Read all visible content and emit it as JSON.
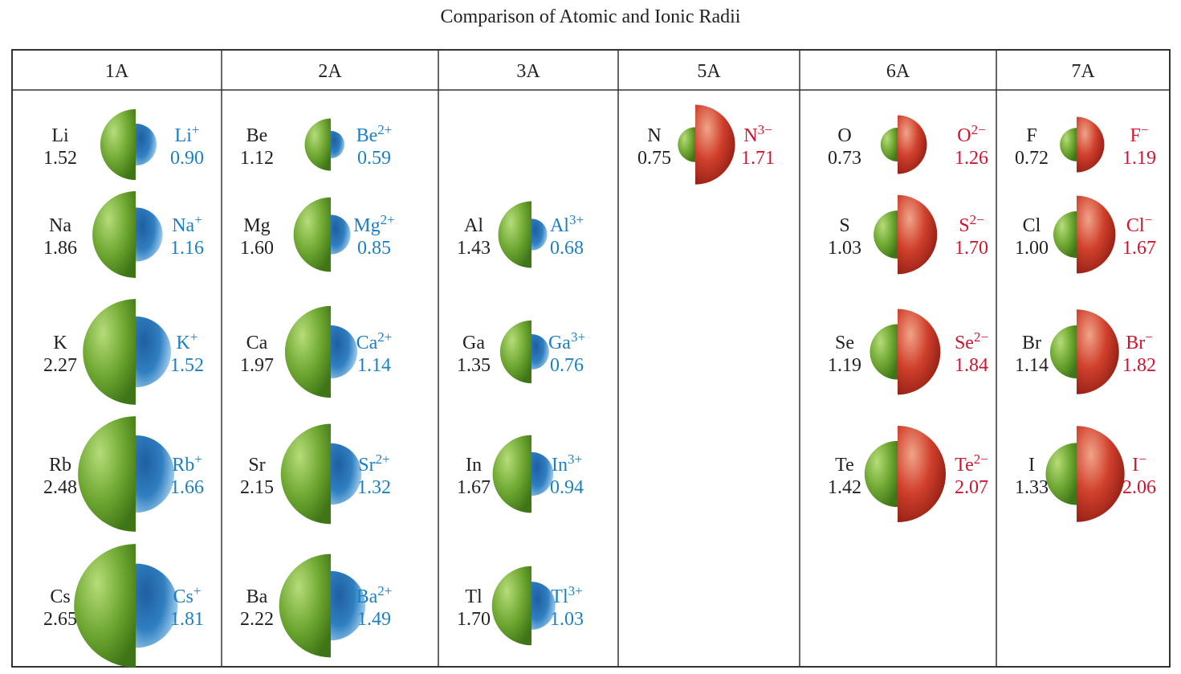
{
  "title": "Comparison of Atomic and Ionic Radii",
  "colors": {
    "atom": "#6fa832",
    "cation": "#2f7fc1",
    "anion": "#d0402c",
    "cation_text": "#1b7fc4",
    "anion_text": "#d0152f",
    "atom_text": "#222222",
    "border": "#333333"
  },
  "groups": [
    {
      "header": "1A",
      "ion_type": "cation",
      "items": [
        {
          "symbol": "Li",
          "atomic_radius": "1.52",
          "ion": "Li",
          "charge": "+",
          "ionic_radius": "0.90",
          "row": 0
        },
        {
          "symbol": "Na",
          "atomic_radius": "1.86",
          "ion": "Na",
          "charge": "+",
          "ionic_radius": "1.16",
          "row": 1
        },
        {
          "symbol": "K",
          "atomic_radius": "2.27",
          "ion": "K",
          "charge": "+",
          "ionic_radius": "1.52",
          "row": 2
        },
        {
          "symbol": "Rb",
          "atomic_radius": "2.48",
          "ion": "Rb",
          "charge": "+",
          "ionic_radius": "1.66",
          "row": 3
        },
        {
          "symbol": "Cs",
          "atomic_radius": "2.65",
          "ion": "Cs",
          "charge": "+",
          "ionic_radius": "1.81",
          "row": 4
        }
      ]
    },
    {
      "header": "2A",
      "ion_type": "cation",
      "items": [
        {
          "symbol": "Be",
          "atomic_radius": "1.12",
          "ion": "Be",
          "charge": "2+",
          "ionic_radius": "0.59",
          "row": 0
        },
        {
          "symbol": "Mg",
          "atomic_radius": "1.60",
          "ion": "Mg",
          "charge": "2+",
          "ionic_radius": "0.85",
          "row": 1
        },
        {
          "symbol": "Ca",
          "atomic_radius": "1.97",
          "ion": "Ca",
          "charge": "2+",
          "ionic_radius": "1.14",
          "row": 2
        },
        {
          "symbol": "Sr",
          "atomic_radius": "2.15",
          "ion": "Sr",
          "charge": "2+",
          "ionic_radius": "1.32",
          "row": 3
        },
        {
          "symbol": "Ba",
          "atomic_radius": "2.22",
          "ion": "Ba",
          "charge": "2+",
          "ionic_radius": "1.49",
          "row": 4
        }
      ]
    },
    {
      "header": "3A",
      "ion_type": "cation",
      "items": [
        {
          "symbol": "Al",
          "atomic_radius": "1.43",
          "ion": "Al",
          "charge": "3+",
          "ionic_radius": "0.68",
          "row": 1
        },
        {
          "symbol": "Ga",
          "atomic_radius": "1.35",
          "ion": "Ga",
          "charge": "3+",
          "ionic_radius": "0.76",
          "row": 2
        },
        {
          "symbol": "In",
          "atomic_radius": "1.67",
          "ion": "In",
          "charge": "3+",
          "ionic_radius": "0.94",
          "row": 3
        },
        {
          "symbol": "Tl",
          "atomic_radius": "1.70",
          "ion": "Tl",
          "charge": "3+",
          "ionic_radius": "1.03",
          "row": 4
        }
      ]
    },
    {
      "header": "5A",
      "ion_type": "anion",
      "items": [
        {
          "symbol": "N",
          "atomic_radius": "0.75",
          "ion": "N",
          "charge": "3−",
          "ionic_radius": "1.71",
          "row": 0
        }
      ]
    },
    {
      "header": "6A",
      "ion_type": "anion",
      "items": [
        {
          "symbol": "O",
          "atomic_radius": "0.73",
          "ion": "O",
          "charge": "2−",
          "ionic_radius": "1.26",
          "row": 0
        },
        {
          "symbol": "S",
          "atomic_radius": "1.03",
          "ion": "S",
          "charge": "2−",
          "ionic_radius": "1.70",
          "row": 1
        },
        {
          "symbol": "Se",
          "atomic_radius": "1.19",
          "ion": "Se",
          "charge": "2−",
          "ionic_radius": "1.84",
          "row": 2
        },
        {
          "symbol": "Te",
          "atomic_radius": "1.42",
          "ion": "Te",
          "charge": "2−",
          "ionic_radius": "2.07",
          "row": 3
        }
      ]
    },
    {
      "header": "7A",
      "ion_type": "anion",
      "items": [
        {
          "symbol": "F",
          "atomic_radius": "0.72",
          "ion": "F",
          "charge": "−",
          "ionic_radius": "1.19",
          "row": 0
        },
        {
          "symbol": "Cl",
          "atomic_radius": "1.00",
          "ion": "Cl",
          "charge": "−",
          "ionic_radius": "1.67",
          "row": 1
        },
        {
          "symbol": "Br",
          "atomic_radius": "1.14",
          "ion": "Br",
          "charge": "−",
          "ionic_radius": "1.82",
          "row": 2
        },
        {
          "symbol": "I",
          "atomic_radius": "1.33",
          "ion": "I",
          "charge": "−",
          "ionic_radius": "2.06",
          "row": 3
        }
      ]
    }
  ]
}
